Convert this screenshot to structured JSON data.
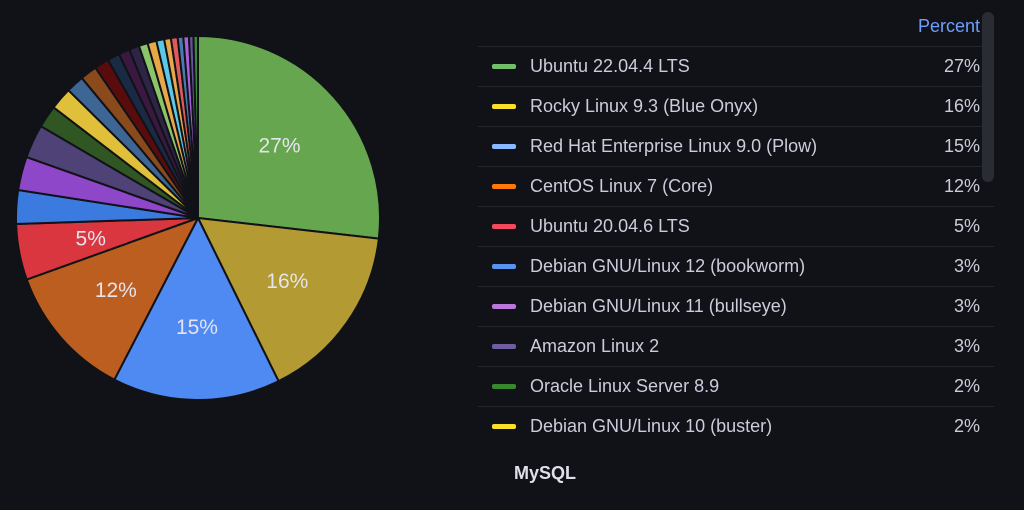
{
  "chart_data": {
    "type": "pie",
    "title": "MySQL",
    "value_header": "Percent",
    "slice_labels_shown": [
      "27%",
      "16%",
      "15%",
      "12%",
      "5%"
    ],
    "series": [
      {
        "name": "Ubuntu 22.04.4 LTS",
        "value": 27,
        "color": "#73bf69",
        "pie_color": "#66a64f"
      },
      {
        "name": "Rocky Linux 9.3 (Blue Onyx)",
        "value": 16,
        "color": "#fade2a",
        "pie_color": "#b39a33"
      },
      {
        "name": "Red Hat Enterprise Linux 9.0 (Plow)",
        "value": 15,
        "color": "#8ab8ff",
        "pie_color": "#4f8af3"
      },
      {
        "name": "CentOS Linux 7 (Core)",
        "value": 12,
        "color": "#ff780a",
        "pie_color": "#bd5e21"
      },
      {
        "name": "Ubuntu 20.04.6 LTS",
        "value": 5,
        "color": "#f2495c",
        "pie_color": "#d93640"
      },
      {
        "name": "Debian GNU/Linux 12 (bookworm)",
        "value": 3,
        "color": "#5794f2",
        "pie_color": "#3b7be0"
      },
      {
        "name": "Debian GNU/Linux 11 (bullseye)",
        "value": 3,
        "color": "#b877d9",
        "pie_color": "#8f47c9"
      },
      {
        "name": "Amazon Linux 2",
        "value": 3,
        "color": "#705da0",
        "pie_color": "#4f4276"
      },
      {
        "name": "Oracle Linux Server 8.9",
        "value": 2,
        "color": "#37872d",
        "pie_color": "#2f5623"
      },
      {
        "name": "Debian GNU/Linux 10 (buster)",
        "value": 2,
        "color": "#fade2a",
        "pie_color": "#e0c03a"
      }
    ],
    "other_small_slices": [
      {
        "value": 1.6,
        "color": "#3d6694"
      },
      {
        "value": 1.5,
        "color": "#8a4a1c"
      },
      {
        "value": 1.3,
        "color": "#5a0c0c"
      },
      {
        "value": 1.1,
        "color": "#1a2a44"
      },
      {
        "value": 1.0,
        "color": "#3a1840"
      },
      {
        "value": 0.9,
        "color": "#2e2446"
      },
      {
        "value": 0.8,
        "color": "#8cc46a"
      },
      {
        "value": 0.8,
        "color": "#e8a848"
      },
      {
        "value": 0.7,
        "color": "#5ac8e8"
      },
      {
        "value": 0.6,
        "color": "#e8a848"
      },
      {
        "value": 0.6,
        "color": "#e05a5a"
      },
      {
        "value": 0.5,
        "color": "#4a7ab0"
      },
      {
        "value": 0.5,
        "color": "#a860d8"
      },
      {
        "value": 0.4,
        "color": "#6a50a0"
      },
      {
        "value": 0.4,
        "color": "#3a8a3a"
      }
    ]
  },
  "legend": {
    "header": "Percent",
    "rows": [
      {
        "label": "Ubuntu 22.04.4 LTS",
        "value": "27%",
        "color": "#73bf69"
      },
      {
        "label": "Rocky Linux 9.3 (Blue Onyx)",
        "value": "16%",
        "color": "#fade2a"
      },
      {
        "label": "Red Hat Enterprise Linux 9.0 (Plow)",
        "value": "15%",
        "color": "#8ab8ff"
      },
      {
        "label": "CentOS Linux 7 (Core)",
        "value": "12%",
        "color": "#ff780a"
      },
      {
        "label": "Ubuntu 20.04.6 LTS",
        "value": "5%",
        "color": "#f2495c"
      },
      {
        "label": "Debian GNU/Linux 12 (bookworm)",
        "value": "3%",
        "color": "#5794f2"
      },
      {
        "label": "Debian GNU/Linux 11 (bullseye)",
        "value": "3%",
        "color": "#b877d9"
      },
      {
        "label": "Amazon Linux 2",
        "value": "3%",
        "color": "#705da0"
      },
      {
        "label": "Oracle Linux Server 8.9",
        "value": "2%",
        "color": "#37872d"
      },
      {
        "label": "Debian GNU/Linux 10 (buster)",
        "value": "2%",
        "color": "#fade2a"
      }
    ]
  },
  "panel": {
    "title": "MySQL"
  }
}
